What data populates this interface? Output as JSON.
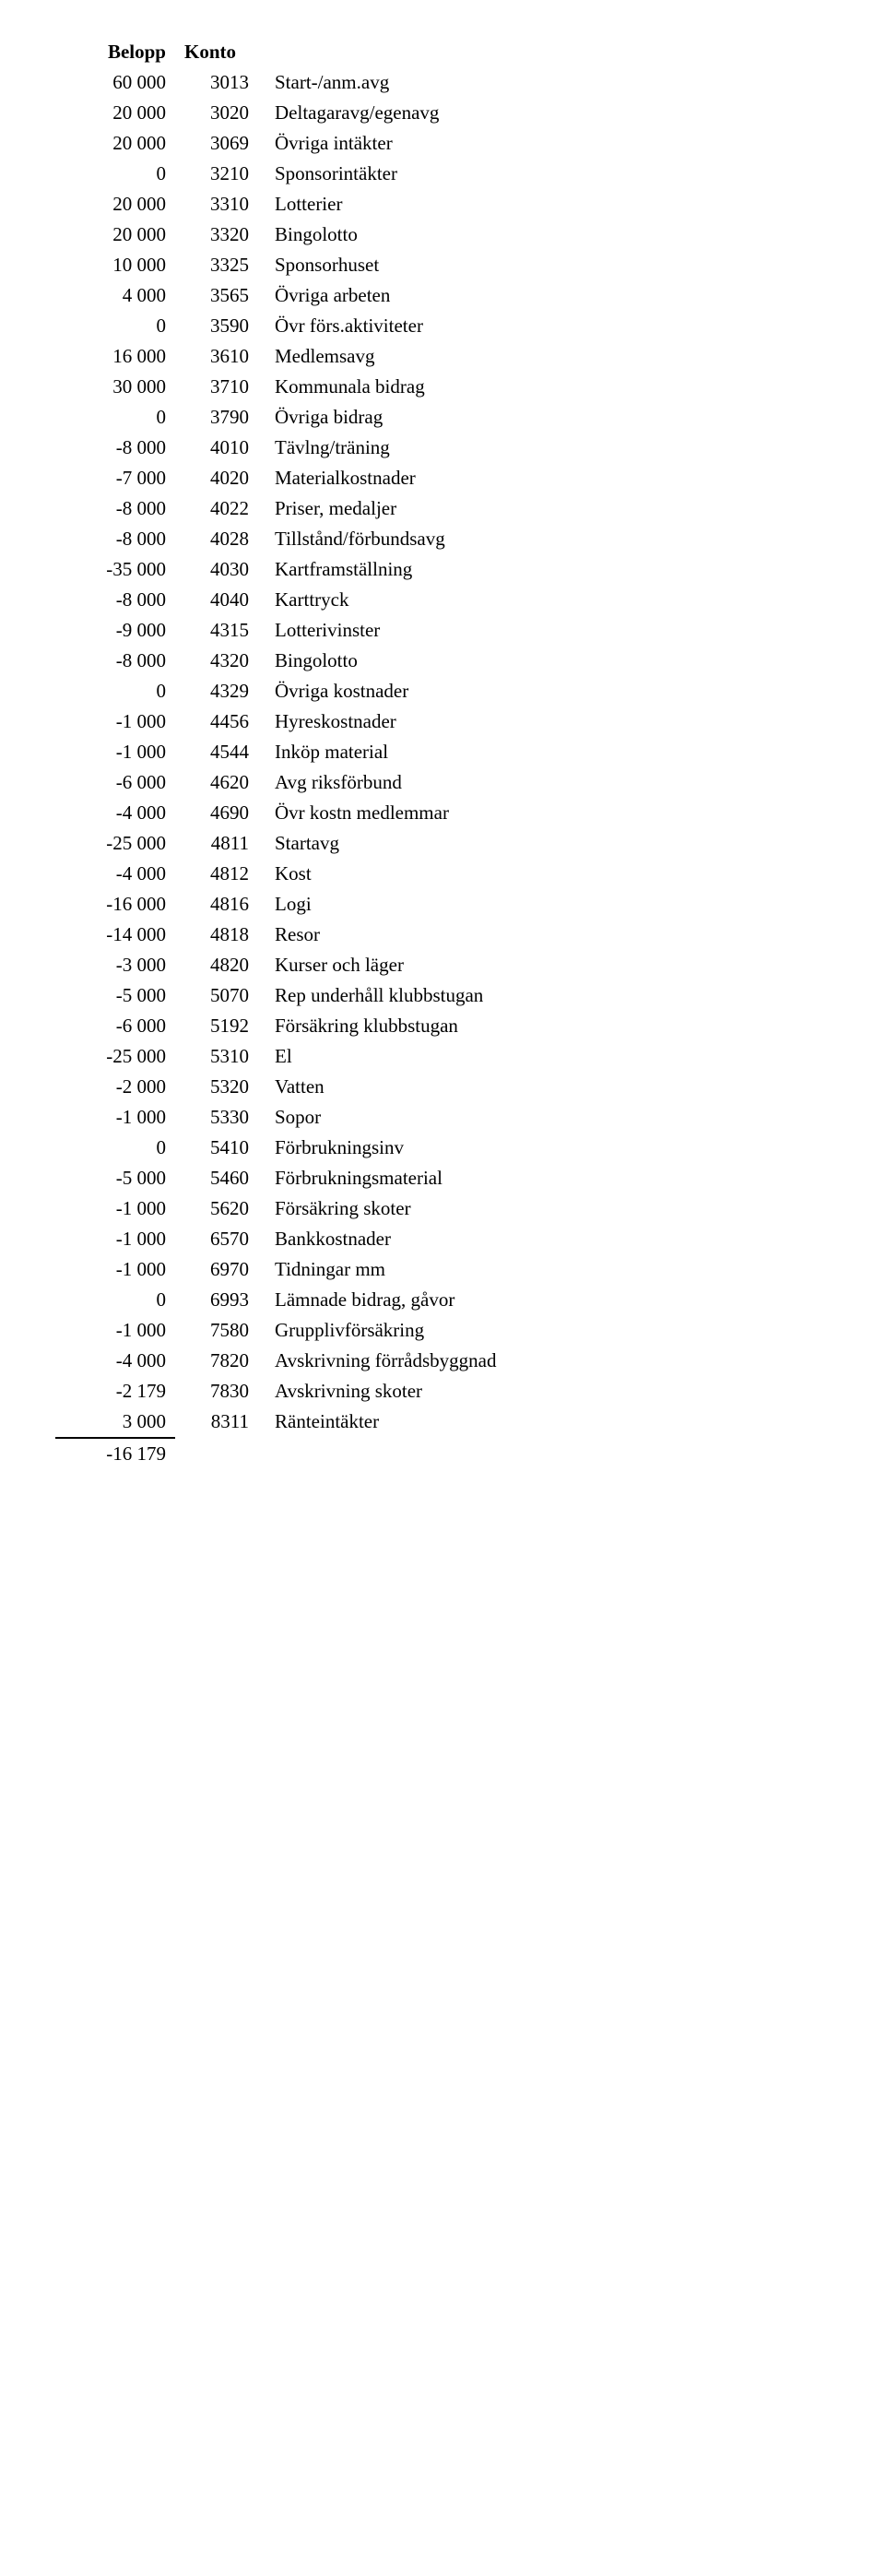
{
  "headers": {
    "belopp": "Belopp",
    "konto": "Konto"
  },
  "rows": [
    {
      "belopp": "60 000",
      "konto": "3013",
      "desc": "Start-/anm.avg"
    },
    {
      "belopp": "20 000",
      "konto": "3020",
      "desc": "Deltagaravg/egenavg"
    },
    {
      "belopp": "20 000",
      "konto": "3069",
      "desc": "Övriga intäkter"
    },
    {
      "belopp": "0",
      "konto": "3210",
      "desc": "Sponsorintäkter"
    },
    {
      "belopp": "20 000",
      "konto": "3310",
      "desc": "Lotterier"
    },
    {
      "belopp": "20 000",
      "konto": "3320",
      "desc": "Bingolotto"
    },
    {
      "belopp": "10 000",
      "konto": "3325",
      "desc": "Sponsorhuset"
    },
    {
      "belopp": "4 000",
      "konto": "3565",
      "desc": "Övriga arbeten"
    },
    {
      "belopp": "0",
      "konto": "3590",
      "desc": "Övr förs.aktiviteter"
    },
    {
      "belopp": "16 000",
      "konto": "3610",
      "desc": "Medlemsavg"
    },
    {
      "belopp": "30 000",
      "konto": "3710",
      "desc": "Kommunala bidrag"
    },
    {
      "belopp": "0",
      "konto": "3790",
      "desc": "Övriga bidrag"
    },
    {
      "belopp": "-8 000",
      "konto": "4010",
      "desc": "Tävlng/träning"
    },
    {
      "belopp": "-7 000",
      "konto": "4020",
      "desc": "Materialkostnader"
    },
    {
      "belopp": "-8 000",
      "konto": "4022",
      "desc": "Priser, medaljer"
    },
    {
      "belopp": "-8 000",
      "konto": "4028",
      "desc": "Tillstånd/förbundsavg"
    },
    {
      "belopp": "-35 000",
      "konto": "4030",
      "desc": "Kartframställning"
    },
    {
      "belopp": "-8 000",
      "konto": "4040",
      "desc": "Karttryck"
    },
    {
      "belopp": "-9 000",
      "konto": "4315",
      "desc": "Lotterivinster"
    },
    {
      "belopp": "-8 000",
      "konto": "4320",
      "desc": "Bingolotto"
    },
    {
      "belopp": "0",
      "konto": "4329",
      "desc": "Övriga kostnader"
    },
    {
      "belopp": "-1 000",
      "konto": "4456",
      "desc": "Hyreskostnader"
    },
    {
      "belopp": "-1 000",
      "konto": "4544",
      "desc": "Inköp material"
    },
    {
      "belopp": "-6 000",
      "konto": "4620",
      "desc": "Avg riksförbund"
    },
    {
      "belopp": "-4 000",
      "konto": "4690",
      "desc": "Övr kostn medlemmar"
    },
    {
      "belopp": "-25 000",
      "konto": "4811",
      "desc": "Startavg"
    },
    {
      "belopp": "-4 000",
      "konto": "4812",
      "desc": "Kost"
    },
    {
      "belopp": "-16 000",
      "konto": "4816",
      "desc": "Logi"
    },
    {
      "belopp": "-14 000",
      "konto": "4818",
      "desc": "Resor"
    },
    {
      "belopp": "-3 000",
      "konto": "4820",
      "desc": "Kurser och läger"
    },
    {
      "belopp": "-5 000",
      "konto": "5070",
      "desc": "Rep underhåll klubbstugan"
    },
    {
      "belopp": "-6 000",
      "konto": "5192",
      "desc": "Försäkring klubbstugan"
    },
    {
      "belopp": "-25 000",
      "konto": "5310",
      "desc": "El"
    },
    {
      "belopp": "-2 000",
      "konto": "5320",
      "desc": "Vatten"
    },
    {
      "belopp": "-1 000",
      "konto": "5330",
      "desc": "Sopor"
    },
    {
      "belopp": "0",
      "konto": "5410",
      "desc": "Förbrukningsinv"
    },
    {
      "belopp": "-5 000",
      "konto": "5460",
      "desc": "Förbrukningsmaterial"
    },
    {
      "belopp": "-1 000",
      "konto": "5620",
      "desc": "Försäkring skoter"
    },
    {
      "belopp": "-1 000",
      "konto": "6570",
      "desc": "Bankkostnader"
    },
    {
      "belopp": "-1 000",
      "konto": "6970",
      "desc": "Tidningar mm"
    },
    {
      "belopp": "0",
      "konto": "6993",
      "desc": "Lämnade bidrag, gåvor"
    },
    {
      "belopp": "-1 000",
      "konto": "7580",
      "desc": "Grupplivförsäkring"
    },
    {
      "belopp": "-4 000",
      "konto": "7820",
      "desc": "Avskrivning förrådsbyggnad"
    },
    {
      "belopp": "-2 179",
      "konto": "7830",
      "desc": "Avskrivning skoter"
    },
    {
      "belopp": "3 000",
      "konto": "8311",
      "desc": "Ränteintäkter"
    }
  ],
  "total": "-16 179",
  "style": {
    "font_family": "Times New Roman",
    "font_size_pt": 16,
    "text_color": "#000000",
    "background_color": "#ffffff",
    "total_border_color": "#000000"
  }
}
